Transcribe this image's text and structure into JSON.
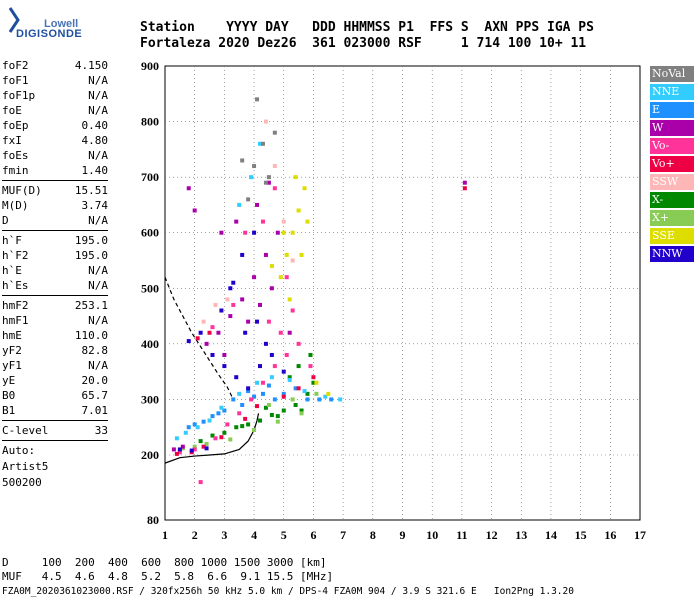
{
  "logo": {
    "brand": "Lowell",
    "product": "DIGISONDE"
  },
  "header": {
    "labels": "Station    YYYY DAY   DDD HHMMSS P1  FFS S  AXN PPS IGA PS",
    "values": "Fortaleza 2020 Dez26  361 023000 RSF     1 714 100 10+ 11"
  },
  "params_group1": [
    {
      "label": "foF2",
      "value": "4.150"
    },
    {
      "label": "foF1",
      "value": "N/A"
    },
    {
      "label": "foF1p",
      "value": "N/A"
    },
    {
      "label": "foE",
      "value": "N/A"
    },
    {
      "label": "foEp",
      "value": "0.40"
    },
    {
      "label": "fxI",
      "value": "4.80"
    },
    {
      "label": "foEs",
      "value": "N/A"
    },
    {
      "label": "fmin",
      "value": "1.40"
    }
  ],
  "params_group2": [
    {
      "label": "MUF(D)",
      "value": "15.51"
    },
    {
      "label": "M(D)",
      "value": "3.74"
    },
    {
      "label": "D",
      "value": "N/A"
    }
  ],
  "params_group3": [
    {
      "label": "h`F",
      "value": "195.0"
    },
    {
      "label": "h`F2",
      "value": "195.0"
    },
    {
      "label": "h`E",
      "value": "N/A"
    },
    {
      "label": "h`Es",
      "value": "N/A"
    }
  ],
  "params_group4": [
    {
      "label": "hmF2",
      "value": "253.1"
    },
    {
      "label": "hmF1",
      "value": "N/A"
    },
    {
      "label": "hmE",
      "value": "110.0"
    },
    {
      "label": "yF2",
      "value": "82.8"
    },
    {
      "label": "yF1",
      "value": "N/A"
    },
    {
      "label": "yE",
      "value": "20.0"
    },
    {
      "label": "B0",
      "value": "65.7"
    },
    {
      "label": "B1",
      "value": "7.01"
    }
  ],
  "clevel": {
    "label": "C-level",
    "value": "33"
  },
  "auto": {
    "line1": "Auto:",
    "line2": "Artist5",
    "line3": "500200"
  },
  "footer": {
    "d_row": "D     100  200  400  600  800 1000 1500 3000 [km]",
    "muf_row": "MUF   4.5  4.6  4.8  5.2  5.8  6.6  9.1 15.5 [MHz]",
    "info": "FZA0M_2020361023000.RSF / 320fx256h 50 kHz 5.0 km / DPS-4 FZA0M 904 / 3.9 S 321.6 E   Ion2Png 1.3.20"
  },
  "legend": [
    {
      "label": "NoVal",
      "color": "#808080"
    },
    {
      "label": "NNE",
      "color": "#33ccff"
    },
    {
      "label": "E",
      "color": "#1e90ff"
    },
    {
      "label": "W",
      "color": "#aa00aa"
    },
    {
      "label": "Vo-",
      "color": "#ff3399"
    },
    {
      "label": "Vo+",
      "color": "#ee0044"
    },
    {
      "label": "SSW",
      "color": "#ffb6b6"
    },
    {
      "label": "X-",
      "color": "#008800"
    },
    {
      "label": "X+",
      "color": "#88cc55"
    },
    {
      "label": "SSE",
      "color": "#dddd00"
    },
    {
      "label": "NNW",
      "color": "#2200cc"
    }
  ],
  "chart_data": {
    "type": "scatter",
    "xlim": [
      1,
      17
    ],
    "ylim": [
      80,
      900
    ],
    "x_ticks": [
      "1",
      "2",
      "3",
      "4",
      "5",
      "6",
      "7",
      "8",
      "9",
      "10",
      "11",
      "12",
      "13",
      "14",
      "15",
      "16",
      "17"
    ],
    "y_ticks": [
      "80",
      "200",
      "300",
      "400",
      "500",
      "600",
      "700",
      "800",
      "900"
    ],
    "grid": true,
    "series": [
      {
        "name": "X-",
        "color": "#008800",
        "points": [
          [
            2.2,
            225
          ],
          [
            2.6,
            235
          ],
          [
            3.0,
            240
          ],
          [
            3.4,
            250
          ],
          [
            3.8,
            255
          ],
          [
            4.2,
            262
          ],
          [
            4.6,
            272
          ],
          [
            5.0,
            280
          ],
          [
            5.4,
            290
          ],
          [
            5.8,
            310
          ],
          [
            6.0,
            330
          ],
          [
            5.6,
            280
          ],
          [
            4.8,
            270
          ],
          [
            4.4,
            285
          ],
          [
            3.6,
            252
          ],
          [
            5.2,
            340
          ],
          [
            5.5,
            360
          ],
          [
            5.9,
            380
          ]
        ]
      },
      {
        "name": "X+",
        "color": "#88cc55",
        "points": [
          [
            1.6,
            212
          ],
          [
            2.0,
            215
          ],
          [
            2.4,
            220
          ],
          [
            3.2,
            228
          ],
          [
            4.0,
            245
          ],
          [
            4.8,
            260
          ],
          [
            5.6,
            275
          ],
          [
            6.1,
            310
          ],
          [
            5.3,
            300
          ],
          [
            4.5,
            290
          ]
        ]
      },
      {
        "name": "E",
        "color": "#1e90ff",
        "points": [
          [
            1.8,
            250
          ],
          [
            2.0,
            255
          ],
          [
            2.3,
            260
          ],
          [
            2.6,
            270
          ],
          [
            3.0,
            280
          ],
          [
            3.3,
            300
          ],
          [
            3.6,
            290
          ],
          [
            4.0,
            305
          ],
          [
            4.3,
            310
          ],
          [
            4.7,
            300
          ],
          [
            5.0,
            310
          ],
          [
            5.4,
            320
          ],
          [
            5.8,
            300
          ],
          [
            6.2,
            300
          ],
          [
            6.6,
            300
          ],
          [
            2.8,
            275
          ],
          [
            3.8,
            315
          ],
          [
            4.5,
            325
          ]
        ]
      },
      {
        "name": "NNE",
        "color": "#33ccff",
        "points": [
          [
            1.4,
            230
          ],
          [
            1.7,
            240
          ],
          [
            2.1,
            250
          ],
          [
            2.5,
            262
          ],
          [
            2.9,
            285
          ],
          [
            3.5,
            310
          ],
          [
            4.1,
            330
          ],
          [
            4.6,
            340
          ],
          [
            5.2,
            335
          ],
          [
            5.7,
            315
          ],
          [
            6.4,
            305
          ],
          [
            6.9,
            300
          ],
          [
            3.9,
            700
          ],
          [
            4.2,
            760
          ],
          [
            3.5,
            650
          ]
        ]
      },
      {
        "name": "W",
        "color": "#aa00aa",
        "points": [
          [
            1.3,
            210
          ],
          [
            1.6,
            215
          ],
          [
            2.4,
            400
          ],
          [
            2.8,
            420
          ],
          [
            3.2,
            450
          ],
          [
            3.6,
            480
          ],
          [
            4.0,
            520
          ],
          [
            4.4,
            560
          ],
          [
            4.8,
            600
          ],
          [
            3.0,
            380
          ],
          [
            3.8,
            440
          ],
          [
            4.2,
            470
          ],
          [
            4.6,
            500
          ],
          [
            5.2,
            420
          ],
          [
            2.9,
            600
          ],
          [
            3.4,
            620
          ],
          [
            4.1,
            650
          ],
          [
            4.5,
            690
          ],
          [
            2.0,
            640
          ],
          [
            1.8,
            680
          ],
          [
            11.1,
            690
          ]
        ]
      },
      {
        "name": "Vo-",
        "color": "#ff3399",
        "points": [
          [
            1.5,
            205
          ],
          [
            2.0,
            210
          ],
          [
            2.7,
            230
          ],
          [
            3.1,
            255
          ],
          [
            3.5,
            275
          ],
          [
            3.9,
            300
          ],
          [
            4.3,
            330
          ],
          [
            4.7,
            360
          ],
          [
            5.1,
            380
          ],
          [
            5.5,
            400
          ],
          [
            5.9,
            360
          ],
          [
            4.9,
            420
          ],
          [
            4.5,
            440
          ],
          [
            5.3,
            460
          ],
          [
            2.6,
            430
          ],
          [
            3.3,
            470
          ],
          [
            3.7,
            600
          ],
          [
            4.3,
            620
          ],
          [
            4.7,
            680
          ],
          [
            5.1,
            520
          ],
          [
            2.2,
            150
          ]
        ]
      },
      {
        "name": "Vo+",
        "color": "#ee0044",
        "points": [
          [
            1.4,
            202
          ],
          [
            1.9,
            205
          ],
          [
            2.3,
            215
          ],
          [
            2.9,
            232
          ],
          [
            3.7,
            265
          ],
          [
            4.1,
            288
          ],
          [
            5.0,
            305
          ],
          [
            5.5,
            320
          ],
          [
            6.0,
            340
          ],
          [
            2.5,
            420
          ],
          [
            2.1,
            410
          ],
          [
            11.1,
            680
          ]
        ]
      },
      {
        "name": "SSW",
        "color": "#ffb6b6",
        "points": [
          [
            2.3,
            440
          ],
          [
            2.7,
            470
          ],
          [
            3.1,
            480
          ],
          [
            4.4,
            800
          ],
          [
            4.7,
            720
          ],
          [
            5.0,
            620
          ],
          [
            5.3,
            550
          ]
        ]
      },
      {
        "name": "SSE",
        "color": "#dddd00",
        "points": [
          [
            4.9,
            520
          ],
          [
            5.1,
            560
          ],
          [
            5.3,
            600
          ],
          [
            5.5,
            640
          ],
          [
            5.7,
            680
          ],
          [
            5.2,
            480
          ],
          [
            5.6,
            560
          ],
          [
            5.0,
            600
          ],
          [
            5.8,
            620
          ],
          [
            4.6,
            540
          ],
          [
            6.1,
            330
          ],
          [
            6.5,
            310
          ],
          [
            5.4,
            700
          ]
        ]
      },
      {
        "name": "NNW",
        "color": "#2200cc",
        "points": [
          [
            1.8,
            405
          ],
          [
            2.2,
            420
          ],
          [
            2.6,
            380
          ],
          [
            3.0,
            360
          ],
          [
            3.4,
            340
          ],
          [
            3.8,
            320
          ],
          [
            4.2,
            360
          ],
          [
            4.6,
            380
          ],
          [
            5.0,
            350
          ],
          [
            2.9,
            460
          ],
          [
            3.3,
            510
          ],
          [
            3.7,
            420
          ],
          [
            4.1,
            440
          ],
          [
            4.4,
            400
          ],
          [
            1.5,
            210
          ],
          [
            1.9,
            208
          ],
          [
            2.4,
            212
          ],
          [
            3.2,
            500
          ],
          [
            3.6,
            560
          ],
          [
            4.0,
            600
          ]
        ]
      },
      {
        "name": "NoVal",
        "color": "#808080",
        "points": [
          [
            4.0,
            720
          ],
          [
            4.3,
            760
          ],
          [
            4.5,
            700
          ],
          [
            3.8,
            660
          ],
          [
            4.7,
            780
          ],
          [
            4.1,
            840
          ],
          [
            3.6,
            730
          ],
          [
            4.4,
            690
          ]
        ]
      }
    ],
    "profile_curve": [
      [
        1.0,
        185
      ],
      [
        1.5,
        195
      ],
      [
        2.0,
        198
      ],
      [
        2.5,
        200
      ],
      [
        3.0,
        202
      ],
      [
        3.5,
        210
      ],
      [
        3.8,
        225
      ],
      [
        4.0,
        245
      ],
      [
        4.1,
        262
      ],
      [
        4.15,
        275
      ]
    ],
    "trace_curve": [
      [
        1.0,
        520
      ],
      [
        1.3,
        480
      ],
      [
        1.6,
        450
      ],
      [
        1.9,
        420
      ],
      [
        2.2,
        395
      ],
      [
        2.5,
        370
      ],
      [
        2.8,
        345
      ],
      [
        3.1,
        322
      ],
      [
        3.3,
        300
      ]
    ]
  }
}
